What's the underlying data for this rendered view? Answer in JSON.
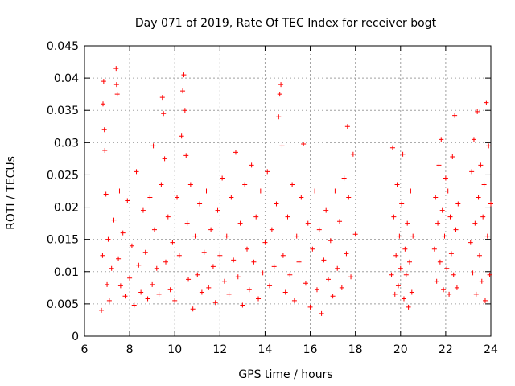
{
  "chart_data": {
    "type": "scatter",
    "title": "Day 071 of 2019, Rate Of TEC Index for receiver bogt",
    "xlabel": "GPS time / hours",
    "ylabel": "ROTI / TECUs",
    "xlim": [
      6,
      24
    ],
    "ylim": [
      0,
      0.045
    ],
    "xticks": [
      6,
      8,
      10,
      12,
      14,
      16,
      18,
      20,
      22,
      24
    ],
    "xtick_labels": [
      "6",
      "8",
      "10",
      "12",
      "14",
      "16",
      "18",
      "20",
      "22",
      "24"
    ],
    "yticks": [
      0,
      0.005,
      0.01,
      0.015,
      0.02,
      0.025,
      0.03,
      0.035,
      0.04,
      0.045
    ],
    "ytick_labels": [
      "0",
      "0.005",
      "0.01",
      "0.015",
      "0.02",
      "0.025",
      "0.03",
      "0.035",
      "0.04",
      "0.045"
    ],
    "grid": true,
    "marker": "+",
    "marker_color": "#ff0000",
    "series": [
      {
        "name": "ROTI",
        "points": [
          [
            6.75,
            0.004
          ],
          [
            6.8,
            0.0125
          ],
          [
            6.82,
            0.036
          ],
          [
            6.85,
            0.0395
          ],
          [
            6.88,
            0.032
          ],
          [
            6.9,
            0.0288
          ],
          [
            6.95,
            0.022
          ],
          [
            7.0,
            0.008
          ],
          [
            7.05,
            0.015
          ],
          [
            7.1,
            0.0055
          ],
          [
            7.2,
            0.0105
          ],
          [
            7.3,
            0.018
          ],
          [
            7.4,
            0.0415
          ],
          [
            7.42,
            0.039
          ],
          [
            7.45,
            0.0375
          ],
          [
            7.5,
            0.012
          ],
          [
            7.55,
            0.0225
          ],
          [
            7.6,
            0.0078
          ],
          [
            7.7,
            0.016
          ],
          [
            7.8,
            0.0062
          ],
          [
            7.9,
            0.021
          ],
          [
            8.0,
            0.009
          ],
          [
            8.1,
            0.014
          ],
          [
            8.2,
            0.0048
          ],
          [
            8.3,
            0.0255
          ],
          [
            8.4,
            0.011
          ],
          [
            8.5,
            0.0068
          ],
          [
            8.6,
            0.0195
          ],
          [
            8.7,
            0.013
          ],
          [
            8.8,
            0.0058
          ],
          [
            8.9,
            0.0215
          ],
          [
            9.0,
            0.008
          ],
          [
            9.05,
            0.0295
          ],
          [
            9.1,
            0.0165
          ],
          [
            9.2,
            0.0105
          ],
          [
            9.3,
            0.0065
          ],
          [
            9.4,
            0.0235
          ],
          [
            9.45,
            0.037
          ],
          [
            9.5,
            0.0345
          ],
          [
            9.55,
            0.0275
          ],
          [
            9.6,
            0.0115
          ],
          [
            9.7,
            0.0185
          ],
          [
            9.8,
            0.0072
          ],
          [
            9.9,
            0.0145
          ],
          [
            10.0,
            0.0055
          ],
          [
            10.1,
            0.0215
          ],
          [
            10.2,
            0.0125
          ],
          [
            10.3,
            0.031
          ],
          [
            10.35,
            0.038
          ],
          [
            10.4,
            0.0405
          ],
          [
            10.45,
            0.035
          ],
          [
            10.5,
            0.028
          ],
          [
            10.55,
            0.0175
          ],
          [
            10.6,
            0.0088
          ],
          [
            10.7,
            0.0235
          ],
          [
            10.8,
            0.0042
          ],
          [
            10.9,
            0.0155
          ],
          [
            11.0,
            0.0095
          ],
          [
            11.1,
            0.0205
          ],
          [
            11.2,
            0.0068
          ],
          [
            11.3,
            0.013
          ],
          [
            11.4,
            0.0225
          ],
          [
            11.5,
            0.0075
          ],
          [
            11.6,
            0.0165
          ],
          [
            11.7,
            0.0108
          ],
          [
            11.8,
            0.0052
          ],
          [
            11.9,
            0.0195
          ],
          [
            12.0,
            0.0125
          ],
          [
            12.1,
            0.0245
          ],
          [
            12.2,
            0.0085
          ],
          [
            12.3,
            0.0155
          ],
          [
            12.4,
            0.0065
          ],
          [
            12.5,
            0.0215
          ],
          [
            12.6,
            0.0118
          ],
          [
            12.7,
            0.0285
          ],
          [
            12.8,
            0.0092
          ],
          [
            12.9,
            0.0175
          ],
          [
            13.0,
            0.0048
          ],
          [
            13.1,
            0.0235
          ],
          [
            13.2,
            0.0135
          ],
          [
            13.3,
            0.0072
          ],
          [
            13.4,
            0.0265
          ],
          [
            13.5,
            0.0115
          ],
          [
            13.6,
            0.0185
          ],
          [
            13.7,
            0.0058
          ],
          [
            13.8,
            0.0225
          ],
          [
            13.9,
            0.0098
          ],
          [
            14.0,
            0.0145
          ],
          [
            14.1,
            0.0255
          ],
          [
            14.2,
            0.0078
          ],
          [
            14.3,
            0.0165
          ],
          [
            14.4,
            0.0108
          ],
          [
            14.5,
            0.0205
          ],
          [
            14.6,
            0.034
          ],
          [
            14.65,
            0.0375
          ],
          [
            14.7,
            0.039
          ],
          [
            14.75,
            0.0295
          ],
          [
            14.8,
            0.0125
          ],
          [
            14.9,
            0.0068
          ],
          [
            15.0,
            0.0185
          ],
          [
            15.1,
            0.0095
          ],
          [
            15.2,
            0.0235
          ],
          [
            15.3,
            0.0055
          ],
          [
            15.4,
            0.0155
          ],
          [
            15.5,
            0.0115
          ],
          [
            15.6,
            0.0215
          ],
          [
            15.7,
            0.0298
          ],
          [
            15.8,
            0.0082
          ],
          [
            15.9,
            0.0175
          ],
          [
            16.0,
            0.0045
          ],
          [
            16.1,
            0.0135
          ],
          [
            16.2,
            0.0225
          ],
          [
            16.3,
            0.0072
          ],
          [
            16.4,
            0.0165
          ],
          [
            16.5,
            0.0035
          ],
          [
            16.6,
            0.0118
          ],
          [
            16.7,
            0.0195
          ],
          [
            16.8,
            0.0088
          ],
          [
            16.9,
            0.0148
          ],
          [
            17.0,
            0.0062
          ],
          [
            17.1,
            0.0225
          ],
          [
            17.2,
            0.0105
          ],
          [
            17.3,
            0.0178
          ],
          [
            17.4,
            0.0075
          ],
          [
            17.5,
            0.0245
          ],
          [
            17.6,
            0.0128
          ],
          [
            17.65,
            0.0325
          ],
          [
            17.7,
            0.0215
          ],
          [
            17.8,
            0.0092
          ],
          [
            17.9,
            0.0282
          ],
          [
            18.0,
            0.0158
          ],
          [
            19.6,
            0.0095
          ],
          [
            19.65,
            0.0292
          ],
          [
            19.7,
            0.0185
          ],
          [
            19.75,
            0.0065
          ],
          [
            19.8,
            0.0125
          ],
          [
            19.85,
            0.0235
          ],
          [
            19.9,
            0.0078
          ],
          [
            19.95,
            0.0155
          ],
          [
            20.0,
            0.0105
          ],
          [
            20.05,
            0.0205
          ],
          [
            20.1,
            0.0282
          ],
          [
            20.15,
            0.0058
          ],
          [
            20.2,
            0.0135
          ],
          [
            20.25,
            0.0095
          ],
          [
            20.3,
            0.0175
          ],
          [
            20.35,
            0.0045
          ],
          [
            20.4,
            0.0115
          ],
          [
            20.45,
            0.0225
          ],
          [
            20.5,
            0.0068
          ],
          [
            20.55,
            0.0155
          ],
          [
            21.5,
            0.0135
          ],
          [
            21.55,
            0.0215
          ],
          [
            21.6,
            0.0085
          ],
          [
            21.65,
            0.0175
          ],
          [
            21.7,
            0.0265
          ],
          [
            21.75,
            0.0115
          ],
          [
            21.8,
            0.0305
          ],
          [
            21.85,
            0.0195
          ],
          [
            21.9,
            0.0072
          ],
          [
            21.95,
            0.0155
          ],
          [
            22.0,
            0.0245
          ],
          [
            22.05,
            0.0105
          ],
          [
            22.1,
            0.0225
          ],
          [
            22.15,
            0.0065
          ],
          [
            22.2,
            0.0185
          ],
          [
            22.25,
            0.0128
          ],
          [
            22.3,
            0.0278
          ],
          [
            22.35,
            0.0095
          ],
          [
            22.4,
            0.0342
          ],
          [
            22.45,
            0.0165
          ],
          [
            22.5,
            0.0075
          ],
          [
            22.55,
            0.0205
          ],
          [
            23.1,
            0.0145
          ],
          [
            23.15,
            0.0255
          ],
          [
            23.2,
            0.0098
          ],
          [
            23.25,
            0.0305
          ],
          [
            23.3,
            0.0175
          ],
          [
            23.35,
            0.0065
          ],
          [
            23.4,
            0.0348
          ],
          [
            23.45,
            0.0215
          ],
          [
            23.5,
            0.0125
          ],
          [
            23.55,
            0.0265
          ],
          [
            23.6,
            0.0085
          ],
          [
            23.65,
            0.0185
          ],
          [
            23.7,
            0.0235
          ],
          [
            23.75,
            0.0055
          ],
          [
            23.8,
            0.0362
          ],
          [
            23.85,
            0.0155
          ],
          [
            23.9,
            0.0295
          ],
          [
            23.95,
            0.0095
          ],
          [
            24.0,
            0.0205
          ]
        ]
      }
    ]
  }
}
